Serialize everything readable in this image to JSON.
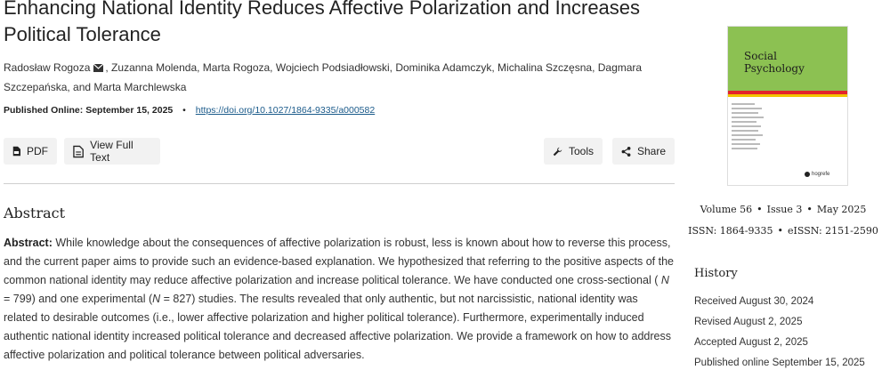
{
  "article": {
    "title": "Enhancing National Identity Reduces Affective Polarization and Increases Political Tolerance",
    "first_author": "Radosław Rogoza",
    "other_authors": ", Zuzanna Molenda, Marta Rogoza, Wojciech Podsiadłowski, Dominika Adamczyk, Michalina Szczęsna, Dagmara Szczepańska, and Marta Marchlewska",
    "published_label": "Published Online:",
    "published_date": "September 15, 2025",
    "doi": "https://doi.org/10.1027/1864-9335/a000582"
  },
  "buttons": {
    "pdf": "PDF",
    "full_text": "View Full Text",
    "tools": "Tools",
    "share": "Share"
  },
  "abstract": {
    "heading": "Abstract",
    "label": "Abstract:",
    "part1": " While knowledge about the consequences of affective polarization is robust, less is known about how to reverse this process, and the current paper aims to provide such an evidence-based explanation. We hypothesized that referring to the positive aspects of the common national identity may reduce affective polarization and increase political tolerance. We have conducted one cross-sectional ( ",
    "n1_var": "N",
    "n1_val": " = 799) and one experimental (",
    "n2_var": "N",
    "n2_val": " = 827) studies. The results revealed that only authentic, but not narcissistic, national identity was related to desirable outcomes (i.e., lower affective polarization and higher political tolerance). Furthermore, experimentally induced authentic national identity increased political tolerance and decreased affective polarization. We provide a framework on how to address affective polarization and political tolerance between political adversaries."
  },
  "journal": {
    "cover_title_line1": "Social",
    "cover_title_line2": "Psychology",
    "publisher": "hogrefe",
    "volume": "Volume 56",
    "issue": "Issue 3",
    "date": "May 2025",
    "issn": "ISSN: 1864-9335",
    "eissn": "eISSN: 2151-2590",
    "colors": {
      "cover_green": "#8cc152",
      "band_red": "#e3242b",
      "band_yellow": "#f2c400"
    }
  },
  "history": {
    "heading": "History",
    "items": [
      "Received August 30, 2024",
      "Revised August 2, 2025",
      "Accepted August 2, 2025",
      "Published online September 15, 2025"
    ]
  },
  "icons": [
    "mail-icon",
    "pdf-icon",
    "document-icon",
    "wrench-icon",
    "share-icon"
  ]
}
